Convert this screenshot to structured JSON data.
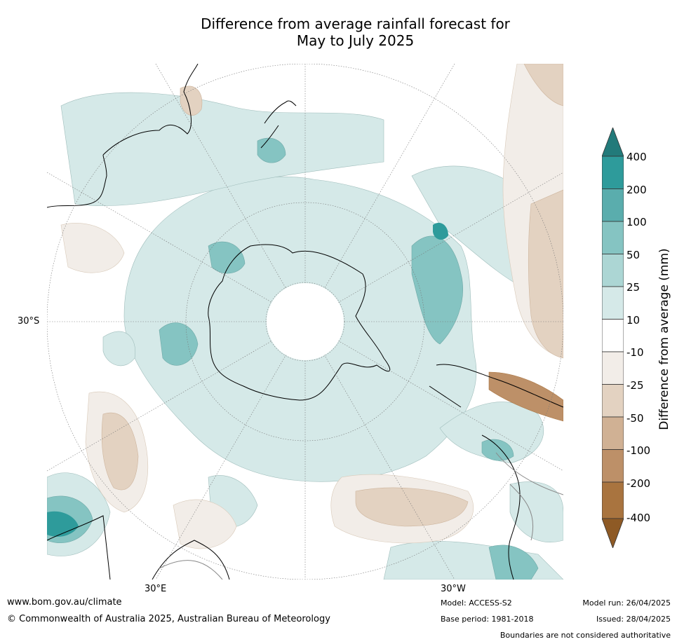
{
  "title": {
    "line1": "Difference from average rainfall forecast for",
    "line2": "May to July 2025"
  },
  "map": {
    "projection": "south-polar-stereographic",
    "lat_labels": [
      "30°S"
    ],
    "lon_labels": [
      "30°E",
      "30°W"
    ]
  },
  "colorbar": {
    "title": "Difference from average (mm)",
    "ticks": [
      "400",
      "200",
      "100",
      "50",
      "25",
      "10",
      "-10",
      "-25",
      "-50",
      "-100",
      "-200",
      "-400"
    ],
    "colors": {
      "above_400": "#227a7a",
      "200_400": "#2e9b9b",
      "100_200": "#5aadad",
      "50_100": "#85c4c2",
      "25_50": "#acd6d4",
      "10_25": "#d5e9e8",
      "-10_10": "#ffffff",
      "-25_-10": "#f2ede8",
      "-50_-25": "#e3d2c1",
      "-100_-50": "#d0b194",
      "-200_-100": "#bd9068",
      "-400_-200": "#a9743f",
      "below_-400": "#8e5a25"
    }
  },
  "footer": {
    "url": "www.bom.gov.au/climate",
    "copyright": "© Commonwealth of Australia 2025, Australian Bureau of Meteorology",
    "model": "Model: ACCESS-S2",
    "base_period": "Base period: 1981-2018",
    "model_run": "Model run: 26/04/2025",
    "issued": "Issued: 28/04/2025",
    "boundaries_note": "Boundaries are not considered authoritative"
  }
}
